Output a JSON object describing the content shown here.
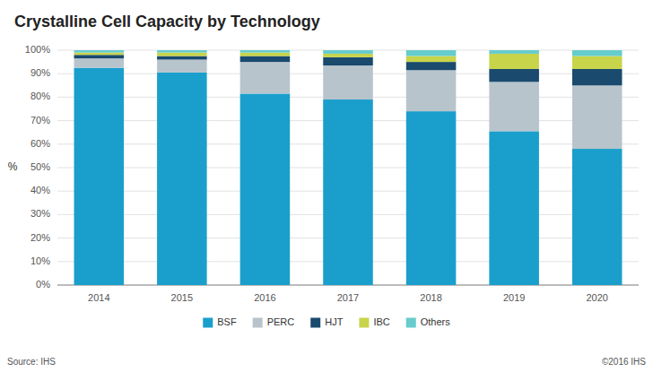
{
  "chart_data": {
    "type": "bar",
    "title": "Crystalline Cell Capacity by Technology",
    "y_label": "%",
    "categories": [
      "2014",
      "2015",
      "2016",
      "2017",
      "2018",
      "2019",
      "2020"
    ],
    "series": [
      {
        "name": "BSF",
        "color": "#1a9fcc",
        "values": [
          92.5,
          90.5,
          81.5,
          79.0,
          74.0,
          65.5,
          58.0
        ]
      },
      {
        "name": "PERC",
        "color": "#b8c4cc",
        "values": [
          4.0,
          5.5,
          13.5,
          14.5,
          17.5,
          21.0,
          27.0
        ]
      },
      {
        "name": "HJT",
        "color": "#1a4a6e",
        "values": [
          1.5,
          1.5,
          2.5,
          3.5,
          3.5,
          5.5,
          7.0
        ]
      },
      {
        "name": "IBC",
        "color": "#c8d44a",
        "values": [
          1.0,
          1.5,
          1.5,
          1.5,
          2.5,
          6.5,
          5.5
        ]
      },
      {
        "name": "Others",
        "color": "#66cccc",
        "values": [
          1.0,
          1.0,
          1.0,
          1.5,
          2.5,
          1.5,
          2.5
        ]
      }
    ],
    "stacked": true,
    "ylim": [
      0,
      100
    ],
    "yticks": [
      {
        "value": 0,
        "label": "0%"
      },
      {
        "value": 10,
        "label": "10%"
      },
      {
        "value": 20,
        "label": "20%"
      },
      {
        "value": 30,
        "label": "30%"
      },
      {
        "value": 40,
        "label": "40%"
      },
      {
        "value": 50,
        "label": "50%"
      },
      {
        "value": 60,
        "label": "60%"
      },
      {
        "value": 70,
        "label": "70%"
      },
      {
        "value": 80,
        "label": "80%"
      },
      {
        "value": 90,
        "label": "90%"
      },
      {
        "value": 100,
        "label": "100%"
      }
    ],
    "grid": true,
    "legend": "bottom",
    "annotations": [
      "Source: IHS",
      "©2016 IHS"
    ]
  }
}
